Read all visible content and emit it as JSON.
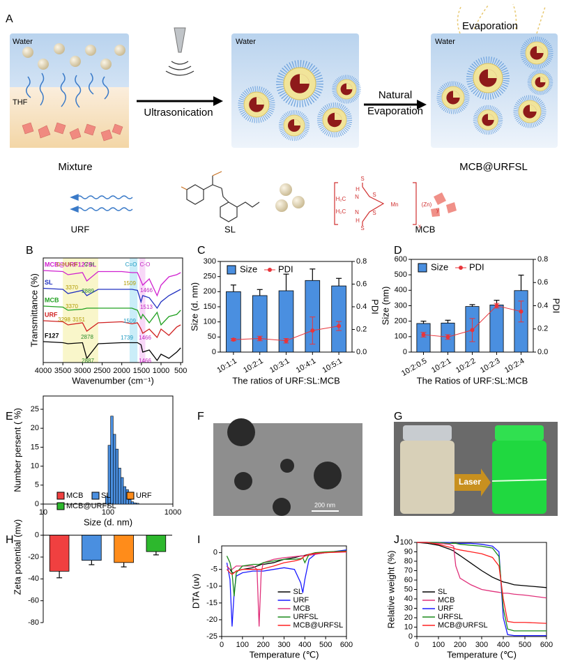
{
  "panel_labels": [
    "A",
    "B",
    "C",
    "D",
    "E",
    "F",
    "G",
    "H",
    "I",
    "J"
  ],
  "schematic": {
    "water_labels": [
      "Water",
      "Water",
      "Water"
    ],
    "thf": "THF",
    "ultrasonication": "Ultrasonication",
    "natural": "Natural",
    "evaporation_arrow": "Evaporation",
    "evaporation_top": "Evaporation",
    "mixture": "Mixture",
    "product": "MCB@URFSL",
    "components": [
      "URF",
      "SL",
      "MCB"
    ],
    "structure_labels": [
      "H",
      "N",
      "H₂C",
      "H",
      "N",
      "H₂C",
      "S",
      "S",
      "S",
      "S",
      "Mn",
      "(Zn)",
      "y",
      "x"
    ]
  },
  "tem": {
    "scale_bar": "200 nm"
  },
  "photo": {
    "laser": "Laser"
  },
  "chart_data": [
    {
      "type": "line",
      "xlabel": "Wavenumber (cm⁻¹)",
      "ylabel": "Transmittance (%)",
      "x": [
        4000,
        3500,
        3370,
        3000,
        2890,
        2600,
        2000,
        1740,
        1600,
        1510,
        1466,
        1300,
        1100,
        1000,
        800,
        600,
        500
      ],
      "xlim": [
        4000,
        450
      ],
      "xticks": [
        4000,
        3500,
        3000,
        2500,
        2000,
        1500,
        1000,
        500
      ],
      "ylim": [
        1,
        6
      ],
      "series_labels": true,
      "bands": [
        {
          "range": [
            3500,
            2600
          ],
          "color": "#f2ec8a"
        },
        {
          "range": [
            1800,
            1600
          ],
          "color": "#8ad8f0"
        },
        {
          "range": [
            1550,
            1400
          ],
          "color": "#f0a8f0"
        }
      ],
      "series": [
        {
          "name": "MCB@URF127SL",
          "color": "#d020d0",
          "values": [
            5.4,
            5.35,
            5.2,
            5.3,
            4.9,
            5.35,
            5.35,
            5.3,
            5.3,
            4.9,
            4.7,
            5.0,
            4.2,
            4.7,
            5.1,
            5.2,
            5.3
          ]
        },
        {
          "name": "SL",
          "color": "#2030c0",
          "values": [
            4.55,
            4.5,
            4.3,
            4.45,
            4.2,
            4.5,
            4.5,
            4.5,
            4.45,
            3.9,
            4.2,
            4.1,
            3.6,
            3.9,
            4.2,
            4.4,
            4.5
          ]
        },
        {
          "name": "MCB",
          "color": "#20a020",
          "values": [
            3.7,
            3.65,
            3.5,
            3.55,
            3.6,
            3.6,
            3.6,
            3.6,
            3.5,
            3.1,
            3.3,
            2.9,
            3.4,
            2.8,
            3.2,
            3.3,
            3.5
          ]
        },
        {
          "name": "URF",
          "color": "#d02020",
          "values": [
            3.0,
            2.95,
            2.8,
            2.9,
            2.5,
            2.9,
            2.95,
            2.85,
            2.9,
            2.6,
            2.4,
            2.6,
            2.2,
            2.6,
            2.3,
            2.7,
            2.8
          ]
        },
        {
          "name": "F127",
          "color": "#000000",
          "values": [
            2.0,
            1.95,
            1.9,
            1.95,
            1.2,
            1.9,
            1.95,
            1.95,
            1.95,
            1.85,
            1.5,
            1.6,
            1.1,
            1.4,
            1.2,
            1.5,
            1.7
          ]
        }
      ],
      "annotations": [
        {
          "text": "O-H",
          "color": "#b09a00"
        },
        {
          "text": "N-H",
          "color": "#b09a00"
        },
        {
          "text": "C-H",
          "color": "#2a8a2a"
        },
        {
          "text": "C=O",
          "color": "#1a98c0"
        },
        {
          "text": "C-O",
          "color": "#c020c0"
        },
        {
          "text": "3370",
          "color": "#b09a00"
        },
        {
          "text": "2889",
          "color": "#2a8a2a"
        },
        {
          "text": "1509",
          "color": "#b09a00"
        },
        {
          "text": "1466",
          "color": "#c020c0"
        },
        {
          "text": "3370",
          "color": "#b09a00"
        },
        {
          "text": "1513",
          "color": "#c020c0"
        },
        {
          "text": "3298",
          "color": "#b09a00"
        },
        {
          "text": "3151",
          "color": "#b09a00"
        },
        {
          "text": "1509",
          "color": "#1a98c0"
        },
        {
          "text": "2878",
          "color": "#2a8a2a"
        },
        {
          "text": "1739",
          "color": "#1a98c0"
        },
        {
          "text": "1466",
          "color": "#c020c0"
        },
        {
          "text": "2887",
          "color": "#2a8a2a"
        },
        {
          "text": "1466",
          "color": "#c020c0"
        }
      ]
    },
    {
      "type": "bar",
      "xlabel": "The ratios of URF:SL:MCB",
      "ylabel": "Size (d. nm)",
      "y2label": "PDI",
      "categories": [
        "10:1:1",
        "10:2:1",
        "10:3:1",
        "10:4:1",
        "10:5:1"
      ],
      "ylim": [
        0,
        300
      ],
      "yticks": [
        0,
        50,
        100,
        150,
        200,
        250,
        300
      ],
      "y2lim": [
        0,
        0.8
      ],
      "y2ticks": [
        {
          "value": 0,
          "label": "0.0"
        },
        0.2,
        0.4,
        0.6,
        0.8
      ],
      "legend": "upper left",
      "series": [
        {
          "name": "Size",
          "color": "#4a8fe0",
          "values": [
            200,
            187,
            203,
            237,
            219
          ],
          "errors": [
            22,
            20,
            55,
            38,
            25
          ]
        },
        {
          "name": "PDI",
          "color": "#e8343a",
          "axis": "y2",
          "values": [
            0.11,
            0.12,
            0.1,
            0.19,
            0.23
          ],
          "errors": [
            0.01,
            0.02,
            0.02,
            0.12,
            0.04
          ]
        }
      ]
    },
    {
      "type": "bar",
      "xlabel": "The Ratios of URF:SL:MCB",
      "ylabel": "Size (nm)",
      "y2label": "PDI",
      "categories": [
        "10:2:0.5",
        "10:2:1",
        "10:2:2",
        "10:2:3",
        "10:2:4"
      ],
      "ylim": [
        0,
        600
      ],
      "yticks": [
        0,
        100,
        200,
        300,
        400,
        500,
        600
      ],
      "y2lim": [
        0,
        0.8
      ],
      "y2ticks": [
        {
          "value": 0,
          "label": "0.0"
        },
        0.2,
        0.4,
        0.6,
        0.8
      ],
      "legend": "upper left",
      "series": [
        {
          "name": "Size",
          "color": "#4a8fe0",
          "values": [
            185,
            188,
            295,
            305,
            398
          ],
          "errors": [
            15,
            18,
            12,
            30,
            100
          ]
        },
        {
          "name": "PDI",
          "color": "#e8343a",
          "axis": "y2",
          "values": [
            0.15,
            0.13,
            0.19,
            0.4,
            0.35
          ],
          "errors": [
            0.02,
            0.02,
            0.1,
            0.02,
            0.09
          ]
        }
      ]
    },
    {
      "type": "histogram",
      "xlabel": "Size (d. nm)",
      "ylabel": "Number persent ( %)",
      "color": "#4a8fe0",
      "bins": [
        91.3,
        100,
        109.5,
        120,
        131.4,
        144,
        157.7,
        172.7,
        189.2,
        207.2,
        227,
        248.6,
        272.3,
        298.3
      ],
      "values": [
        2,
        15.5,
        23.2,
        18.4,
        14.5,
        9.5,
        7,
        4.6,
        3.8,
        1.2,
        0.6,
        0.3,
        0.2
      ],
      "xlog": true,
      "xlim": [
        10,
        1000
      ],
      "xticks": [
        10,
        100,
        1000
      ],
      "ylim": [
        0,
        28.5
      ],
      "yticks": [
        0,
        5,
        10,
        15,
        20,
        25
      ]
    },
    {
      "type": "bar",
      "ylabel": "Zeta potential (mv)",
      "frame": false,
      "show_categories": false,
      "categories": [
        "MCB",
        "SL",
        "URF",
        "MCB@URFSL"
      ],
      "colors": [
        "#f04040",
        "#4a8fe0",
        "#ff8c1a",
        "#2db82d"
      ],
      "values": [
        -33,
        -23,
        -25,
        -15
      ],
      "errors": [
        6,
        4,
        4,
        3
      ],
      "ylim": [
        -80,
        40
      ],
      "yticks": [
        -80,
        -60,
        -40,
        -20,
        0
      ],
      "legend": "upper left"
    },
    {
      "type": "line",
      "xlabel": "Temperature (℃)",
      "ylabel": "DTA (uv)",
      "x": [
        25,
        40,
        50,
        60,
        70,
        100,
        150,
        170,
        180,
        190,
        200,
        250,
        300,
        350,
        380,
        390,
        400,
        420,
        450,
        500,
        600
      ],
      "xlim": [
        0,
        600
      ],
      "xticks": [
        0,
        100,
        200,
        300,
        400,
        500,
        600
      ],
      "ylim": [
        -25,
        2
      ],
      "yticks": [
        -25,
        -20,
        -15,
        -10,
        -5,
        0
      ],
      "legend": "lower right",
      "series": [
        {
          "name": "SL",
          "color": "#000000",
          "values": [
            -4,
            -5,
            -6,
            -6,
            -5.5,
            -5,
            -4.5,
            -4,
            -3.8,
            -3.5,
            -3.5,
            -3,
            -2,
            -1.5,
            -1,
            -1,
            -0.8,
            -0.5,
            -0.3,
            0,
            0.5
          ]
        },
        {
          "name": "URF",
          "color": "#1a1aff",
          "values": [
            -3,
            -8,
            -22,
            -12,
            -7,
            -6,
            -5.5,
            -5.5,
            -5.5,
            -5.5,
            -5.5,
            -5,
            -4.5,
            -5,
            -9,
            -12,
            -8,
            -2,
            -0.5,
            0,
            0.8
          ]
        },
        {
          "name": "MCB",
          "color": "#e0307a",
          "values": [
            -4,
            -5,
            -5,
            -4.5,
            -4,
            -4,
            -4,
            -5,
            -22,
            -6,
            -3,
            -2,
            -1.5,
            -1.2,
            -1,
            -1,
            -1,
            -0.8,
            -0.5,
            0,
            0.2
          ]
        },
        {
          "name": "URFSL",
          "color": "#1a8a1a",
          "values": [
            -1,
            -3,
            -6,
            -13,
            -6,
            -4,
            -3.5,
            -3.5,
            -3.5,
            -3.3,
            -3,
            -2.5,
            -2,
            -2,
            -1.8,
            -1.5,
            -3,
            -0.5,
            0,
            0.2,
            0.5
          ]
        },
        {
          "name": "MCB@URFSL",
          "color": "#ff2020",
          "values": [
            -5,
            -6,
            -6.5,
            -6,
            -5.5,
            -5,
            -5,
            -5,
            -5,
            -5,
            -4.8,
            -4,
            -3,
            -2.5,
            -2,
            -1.5,
            -1,
            -0.5,
            -0.2,
            0,
            0.3
          ]
        }
      ]
    },
    {
      "type": "line",
      "xlabel": "Temperature (℃)",
      "ylabel": "Relative weight (%)",
      "x": [
        0,
        50,
        100,
        150,
        170,
        180,
        200,
        250,
        300,
        350,
        380,
        400,
        420,
        450,
        500,
        600
      ],
      "xlim": [
        0,
        600
      ],
      "xticks": [
        0,
        100,
        200,
        300,
        400,
        500,
        600
      ],
      "ylim": [
        0,
        100
      ],
      "yticks": [
        0,
        10,
        20,
        30,
        40,
        50,
        60,
        70,
        80,
        90,
        100
      ],
      "legend": "lower left",
      "series": [
        {
          "name": "SL",
          "color": "#000000",
          "values": [
            100,
            99,
            97,
            93,
            91,
            89,
            86,
            78,
            70,
            63,
            60,
            58,
            57,
            55,
            54,
            52
          ]
        },
        {
          "name": "MCB",
          "color": "#e0307a",
          "values": [
            100,
            100,
            99,
            98,
            96,
            75,
            62,
            55,
            50,
            48,
            47,
            46,
            46,
            45,
            44,
            41
          ]
        },
        {
          "name": "URF",
          "color": "#1a1aff",
          "values": [
            100,
            100,
            100,
            100,
            99,
            99,
            99,
            99,
            98,
            96,
            90,
            20,
            2,
            1,
            1,
            1
          ]
        },
        {
          "name": "URFSL",
          "color": "#1a8a1a",
          "values": [
            100,
            100,
            100,
            99,
            99,
            99,
            98,
            97,
            96,
            94,
            85,
            30,
            8,
            6,
            6,
            6
          ]
        },
        {
          "name": "MCB@URFSL",
          "color": "#ff2020",
          "values": [
            100,
            100,
            98,
            95,
            94,
            93,
            92,
            90,
            88,
            84,
            75,
            40,
            16,
            15,
            15,
            14
          ]
        }
      ]
    }
  ]
}
